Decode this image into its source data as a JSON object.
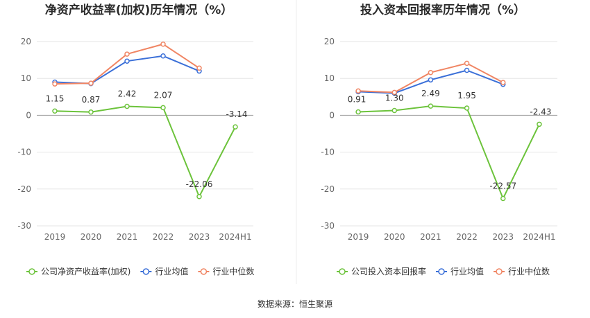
{
  "colors": {
    "company": "#6cc33b",
    "industry_avg": "#3a6fd8",
    "industry_median": "#f08563",
    "grid": "#e6e6e6",
    "axis": "#999999"
  },
  "source_text": "数据来源：恒生聚源",
  "chart_data": [
    {
      "type": "line",
      "title": "净资产收益率(加权)历年情况（%）",
      "categories": [
        "2019",
        "2020",
        "2021",
        "2022",
        "2023",
        "2024H1"
      ],
      "ylim": [
        -30,
        20
      ],
      "yticks": [
        "20",
        "10",
        "0",
        "-10",
        "-20",
        "-30"
      ],
      "grid": true,
      "legend_position": "bottom",
      "series": [
        {
          "name": "公司净资产收益率(加权)",
          "values": [
            1.15,
            0.87,
            2.42,
            2.07,
            -22.06,
            -3.14
          ],
          "labels": [
            "1.15",
            "0.87",
            "2.42",
            "2.07",
            "-22.06",
            "-3.14"
          ]
        },
        {
          "name": "行业均值",
          "values": [
            9.0,
            8.6,
            14.7,
            16.1,
            12.0,
            null
          ]
        },
        {
          "name": "行业中位数",
          "values": [
            8.5,
            8.7,
            16.6,
            19.3,
            12.8,
            null
          ]
        }
      ]
    },
    {
      "type": "line",
      "title": "投入资本回报率历年情况（%）",
      "categories": [
        "2019",
        "2020",
        "2021",
        "2022",
        "2023",
        "2024H1"
      ],
      "ylim": [
        -30,
        20
      ],
      "yticks": [
        "20",
        "10",
        "0",
        "-10",
        "-20",
        "-30"
      ],
      "grid": true,
      "legend_position": "bottom",
      "series": [
        {
          "name": "公司投入资本回报率",
          "values": [
            0.91,
            1.3,
            2.49,
            1.95,
            -22.57,
            -2.43
          ],
          "labels": [
            "0.91",
            "1.30",
            "2.49",
            "1.95",
            "-22.57",
            "-2.43"
          ]
        },
        {
          "name": "行业均值",
          "values": [
            6.4,
            6.0,
            9.6,
            12.2,
            8.4,
            null
          ]
        },
        {
          "name": "行业中位数",
          "values": [
            6.6,
            6.2,
            11.6,
            14.1,
            8.9,
            null
          ]
        }
      ]
    }
  ]
}
